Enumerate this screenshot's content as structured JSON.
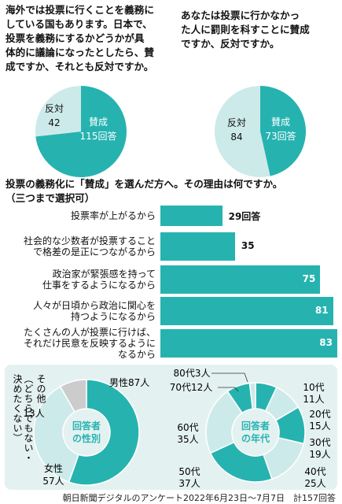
{
  "q1": {
    "lines": [
      "海外では投票に行くことを義務に",
      "している国もあります。日本で、",
      "投票を義務にするかどうかが具",
      "体的に議論になったとしたら、賛",
      "成ですか、それとも反対ですか。"
    ]
  },
  "q2": {
    "lines": [
      "あなたは投票に行かなかっ",
      "た人に罰則を科すことに賛成",
      "ですか、反対ですか。"
    ]
  },
  "q3": {
    "lines": [
      "投票の義務化に「賛成」を選んだ方へ。その理由は何ですか。",
      "（三つまで選択可）"
    ]
  },
  "colors": {
    "teal": "#26b3b0",
    "light": "#cdeaea",
    "gray": "#cccccc",
    "panel": "#e4f1f1"
  },
  "chart_data": [
    {
      "type": "pie",
      "labels": [
        "賛成",
        "反対"
      ],
      "values": [
        115,
        42
      ],
      "value_labels": [
        "115回答",
        "42"
      ]
    },
    {
      "type": "pie",
      "labels": [
        "賛成",
        "反対"
      ],
      "values": [
        73,
        84
      ],
      "value_labels": [
        "73回答",
        "84"
      ]
    },
    {
      "type": "bar",
      "orientation": "horizontal",
      "categories": [
        [
          "投票率が上がるから"
        ],
        [
          "社会的な少数者が投票すること",
          "で格差の是正につながるから"
        ],
        [
          "政治家が緊張感を持って",
          "仕事をするようになるから"
        ],
        [
          "人々が日頃から政治に関心を",
          "持つようになるから"
        ],
        [
          "たくさんの人が投票に行けば、",
          "それだけ民意を反映するように",
          "なるから"
        ]
      ],
      "values": [
        29,
        35,
        75,
        81,
        83
      ],
      "value_labels": [
        "29回答",
        "35",
        "75",
        "81",
        "83"
      ]
    },
    {
      "type": "pie",
      "center_label": [
        "回答者",
        "の性別"
      ],
      "labels": [
        "男性",
        "女性",
        "その他（どちらでもない・決めたくない）"
      ],
      "values": [
        87,
        57,
        13
      ],
      "value_labels": [
        "87人",
        "57人",
        "13人"
      ],
      "label_lines": [
        [
          "男性87人"
        ],
        [
          "女性",
          "57人"
        ],
        [
          "その他",
          "（どちらでもない・",
          "決めたくない）",
          "13人"
        ]
      ]
    },
    {
      "type": "pie",
      "center_label": [
        "回答者",
        "の年代"
      ],
      "labels": [
        "10代",
        "20代",
        "30代",
        "40代",
        "50代",
        "60代",
        "70代",
        "80代"
      ],
      "values": [
        11,
        15,
        19,
        25,
        37,
        35,
        12,
        3
      ],
      "value_labels": [
        "11人",
        "15人",
        "19人",
        "25人",
        "37人",
        "35人",
        "12人",
        "3人"
      ]
    }
  ],
  "source": "朝日新聞デジタルのアンケート2022年6月23日〜7月7日　計157回答"
}
